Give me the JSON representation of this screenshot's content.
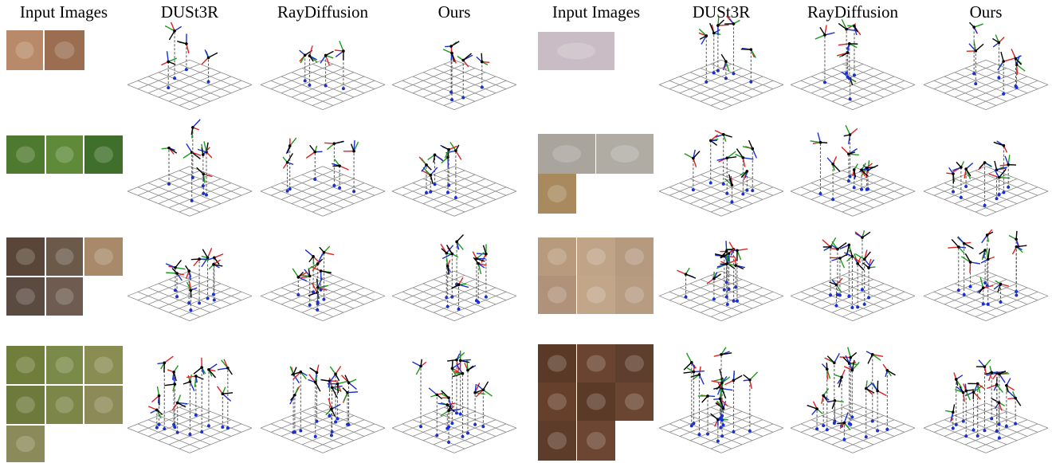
{
  "header": {
    "columns": [
      "Input Images",
      "DUSt3R",
      "RayDiffusion",
      "Ours",
      "Input Images",
      "DUSt3R",
      "RayDiffusion",
      "Ours"
    ]
  }
}
